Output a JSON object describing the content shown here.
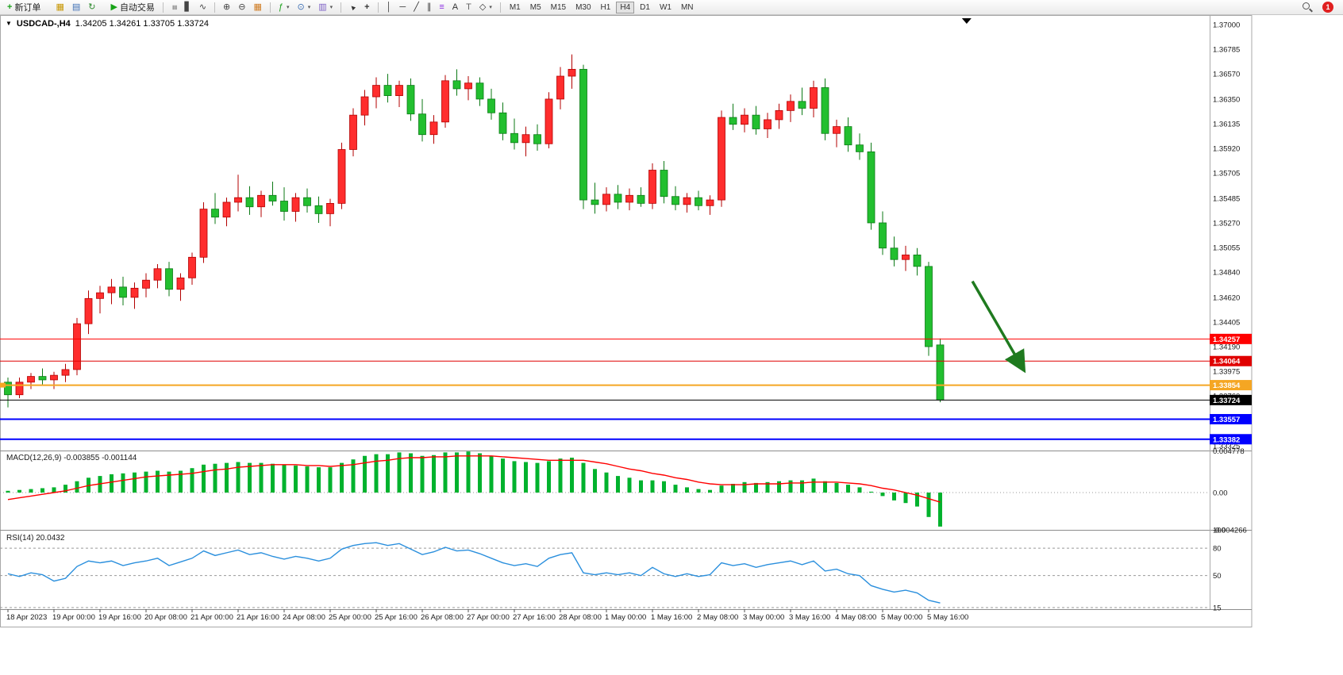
{
  "toolbar": {
    "notification_count": "1",
    "timeframe_active": "H4",
    "caret_glyph": "▾",
    "items": [
      {
        "kind": "button",
        "name": "new-order-button",
        "icon": "new-order-icon",
        "glyph": "+",
        "color": "#18a018",
        "label": "新订单"
      },
      {
        "kind": "gap"
      },
      {
        "kind": "icon",
        "name": "new-chart-button",
        "icon": "new-chart-icon",
        "glyph": "▦",
        "color": "#c79600"
      },
      {
        "kind": "icon",
        "name": "profiles-button",
        "icon": "profiles-icon",
        "glyph": "▤",
        "color": "#3c6eb4"
      },
      {
        "kind": "icon",
        "name": "refresh-button",
        "icon": "refresh-icon",
        "glyph": "↻",
        "color": "#2e8b2e"
      },
      {
        "kind": "gap"
      },
      {
        "kind": "button",
        "name": "autotrading-button",
        "icon": "autotrading-icon",
        "glyph": "▶",
        "color": "#17a317",
        "label": "自动交易"
      },
      {
        "kind": "sep"
      },
      {
        "kind": "icon",
        "name": "bar-chart-button",
        "icon": "bar-chart-icon",
        "glyph": "≡",
        "color": "#444",
        "rot": 90
      },
      {
        "kind": "icon",
        "name": "candlestick-chart-button",
        "icon": "candlestick-chart-icon",
        "glyph": "▋",
        "color": "#444"
      },
      {
        "kind": "icon",
        "name": "line-chart-button",
        "icon": "line-chart-icon",
        "glyph": "∿",
        "color": "#444"
      },
      {
        "kind": "sep"
      },
      {
        "kind": "icon",
        "name": "zoom-in-button",
        "icon": "zoom-in-icon",
        "glyph": "⊕",
        "color": "#444"
      },
      {
        "kind": "icon",
        "name": "zoom-out-button",
        "icon": "zoom-out-icon",
        "glyph": "⊖",
        "color": "#444"
      },
      {
        "kind": "icon",
        "name": "tile-windows-button",
        "icon": "tile-windows-icon",
        "glyph": "▦",
        "color": "#cf7a1f"
      },
      {
        "kind": "sep"
      },
      {
        "kind": "icon",
        "name": "indicators-button",
        "icon": "indicators-icon",
        "glyph": "ƒ",
        "color": "#18a018",
        "dropdown": true
      },
      {
        "kind": "icon",
        "name": "periods-button",
        "icon": "clock-icon",
        "glyph": "⊙",
        "color": "#3c6eb4",
        "dropdown": true
      },
      {
        "kind": "icon",
        "name": "templates-button",
        "icon": "template-icon",
        "glyph": "▥",
        "color": "#7a5cc4",
        "dropdown": true
      },
      {
        "kind": "sep"
      },
      {
        "kind": "icon",
        "name": "cursor-button",
        "icon": "cursor-icon",
        "glyph": "▲",
        "color": "#333",
        "rot": -45
      },
      {
        "kind": "icon",
        "name": "crosshair-button",
        "icon": "crosshair-icon",
        "glyph": "+",
        "color": "#333"
      },
      {
        "kind": "sep"
      },
      {
        "kind": "icon",
        "name": "vertical-line-button",
        "icon": "vertical-line-icon",
        "glyph": "│",
        "color": "#333"
      },
      {
        "kind": "icon",
        "name": "horizontal-line-button",
        "icon": "horizontal-line-icon",
        "glyph": "─",
        "color": "#333"
      },
      {
        "kind": "icon",
        "name": "trendline-button",
        "icon": "trendline-icon",
        "glyph": "╱",
        "color": "#333"
      },
      {
        "kind": "icon",
        "name": "channel-button",
        "icon": "channel-icon",
        "glyph": "∥",
        "color": "#333"
      },
      {
        "kind": "icon",
        "name": "fibonacci-button",
        "icon": "fibonacci-icon",
        "glyph": "≡",
        "color": "#8a2be2"
      },
      {
        "kind": "icon",
        "name": "text-button",
        "icon": "text-icon",
        "glyph": "A",
        "color": "#333"
      },
      {
        "kind": "icon",
        "name": "text-label-button",
        "icon": "text-label-icon",
        "glyph": "T",
        "color": "#666"
      },
      {
        "kind": "icon",
        "name": "shapes-button",
        "icon": "shapes-icon",
        "glyph": "◇",
        "color": "#333",
        "dropdown": true
      },
      {
        "kind": "sep"
      },
      {
        "kind": "tf",
        "label": "M1"
      },
      {
        "kind": "tf",
        "label": "M5"
      },
      {
        "kind": "tf",
        "label": "M15"
      },
      {
        "kind": "tf",
        "label": "M30"
      },
      {
        "kind": "tf",
        "label": "H1"
      },
      {
        "kind": "tf",
        "label": "H4"
      },
      {
        "kind": "tf",
        "label": "D1"
      },
      {
        "kind": "tf",
        "label": "W1"
      },
      {
        "kind": "tf",
        "label": "MN"
      }
    ]
  },
  "chart": {
    "collapse_icon": "▼",
    "title": "USDCAD-,H4",
    "ohlc": "1.34205 1.34261 1.33705 1.33724"
  },
  "chart_data": {
    "type": "candlestick",
    "symbol": "USDCAD-",
    "timeframe": "H4",
    "current_bar": {
      "open": 1.34205,
      "high": 1.34261,
      "low": 1.33705,
      "close": 1.33724
    },
    "colors": {
      "up": "#ff2d2d",
      "up_dark": "#b30000",
      "down": "#22bf2f",
      "down_dark": "#0c7a16",
      "macd_hist": "#00b22d",
      "macd_signal": "#ff0000",
      "rsi_line": "#2a8fdd"
    },
    "y_axis": {
      "max": 1.37,
      "min": 1.33325,
      "labels": [
        "1.37000",
        "1.36785",
        "1.36570",
        "1.36350",
        "1.36135",
        "1.35920",
        "1.35705",
        "1.35485",
        "1.35270",
        "1.35055",
        "1.34840",
        "1.34620",
        "1.34405",
        "1.34190",
        "1.33975",
        "1.33760",
        "1.33545",
        "1.33325"
      ]
    },
    "x_labels": [
      "18 Apr 2023",
      "19 Apr 00:00",
      "19 Apr 16:00",
      "20 Apr 08:00",
      "21 Apr 00:00",
      "21 Apr 16:00",
      "24 Apr 08:00",
      "25 Apr 00:00",
      "25 Apr 16:00",
      "26 Apr 08:00",
      "27 Apr 00:00",
      "27 Apr 16:00",
      "28 Apr 08:00",
      "1 May 00:00",
      "1 May 16:00",
      "2 May 08:00",
      "3 May 00:00",
      "3 May 16:00",
      "4 May 08:00",
      "5 May 00:00",
      "5 May 16:00"
    ],
    "bars_per_x_label": 4,
    "shift_marker_bar": 83.3,
    "candles": [
      [
        1.3388,
        1.3392,
        1.3366,
        1.3377
      ],
      [
        1.3377,
        1.3392,
        1.3374,
        1.3388
      ],
      [
        1.3388,
        1.3396,
        1.3382,
        1.3393
      ],
      [
        1.3393,
        1.34,
        1.3386,
        1.339
      ],
      [
        1.339,
        1.3397,
        1.3382,
        1.3394
      ],
      [
        1.3394,
        1.3404,
        1.3388,
        1.3399
      ],
      [
        1.3399,
        1.3444,
        1.3394,
        1.3439
      ],
      [
        1.3439,
        1.3468,
        1.343,
        1.3461
      ],
      [
        1.3461,
        1.3472,
        1.3448,
        1.3466
      ],
      [
        1.3466,
        1.3478,
        1.3456,
        1.3471
      ],
      [
        1.3471,
        1.348,
        1.3455,
        1.3462
      ],
      [
        1.3462,
        1.3475,
        1.3452,
        1.347
      ],
      [
        1.347,
        1.3483,
        1.3462,
        1.3477
      ],
      [
        1.3477,
        1.3491,
        1.347,
        1.3487
      ],
      [
        1.3487,
        1.3493,
        1.3463,
        1.3469
      ],
      [
        1.3469,
        1.3483,
        1.3459,
        1.3479
      ],
      [
        1.3479,
        1.3501,
        1.3473,
        1.3497
      ],
      [
        1.3497,
        1.3545,
        1.3492,
        1.3539
      ],
      [
        1.3539,
        1.3553,
        1.3526,
        1.3532
      ],
      [
        1.3532,
        1.3549,
        1.3524,
        1.3545
      ],
      [
        1.3545,
        1.3569,
        1.3537,
        1.3549
      ],
      [
        1.3549,
        1.3559,
        1.3534,
        1.3541
      ],
      [
        1.3541,
        1.3555,
        1.3532,
        1.3551
      ],
      [
        1.3551,
        1.3563,
        1.3542,
        1.3546
      ],
      [
        1.3546,
        1.3558,
        1.3529,
        1.3537
      ],
      [
        1.3537,
        1.3553,
        1.3528,
        1.3549
      ],
      [
        1.3549,
        1.3557,
        1.3536,
        1.3542
      ],
      [
        1.3542,
        1.355,
        1.3527,
        1.3535
      ],
      [
        1.3535,
        1.3548,
        1.3524,
        1.3544
      ],
      [
        1.3544,
        1.3597,
        1.3539,
        1.3591
      ],
      [
        1.3591,
        1.3627,
        1.3585,
        1.3621
      ],
      [
        1.3621,
        1.3643,
        1.3612,
        1.3637
      ],
      [
        1.3637,
        1.3654,
        1.3627,
        1.3647
      ],
      [
        1.3647,
        1.3657,
        1.3632,
        1.3638
      ],
      [
        1.3638,
        1.3651,
        1.3628,
        1.3647
      ],
      [
        1.3647,
        1.3653,
        1.3616,
        1.3622
      ],
      [
        1.3622,
        1.3635,
        1.3598,
        1.3604
      ],
      [
        1.3604,
        1.3621,
        1.3596,
        1.3615
      ],
      [
        1.3615,
        1.3656,
        1.361,
        1.3651
      ],
      [
        1.3651,
        1.3661,
        1.3638,
        1.3644
      ],
      [
        1.3644,
        1.3655,
        1.3634,
        1.3649
      ],
      [
        1.3649,
        1.3654,
        1.3629,
        1.3635
      ],
      [
        1.3635,
        1.3644,
        1.3617,
        1.3623
      ],
      [
        1.3623,
        1.3632,
        1.3599,
        1.3605
      ],
      [
        1.3605,
        1.3618,
        1.3591,
        1.3597
      ],
      [
        1.3597,
        1.3611,
        1.3585,
        1.3604
      ],
      [
        1.3604,
        1.3613,
        1.359,
        1.3596
      ],
      [
        1.3596,
        1.3641,
        1.3592,
        1.3635
      ],
      [
        1.3635,
        1.3663,
        1.3626,
        1.3655
      ],
      [
        1.3655,
        1.3674,
        1.3644,
        1.3661
      ],
      [
        1.3661,
        1.3665,
        1.3539,
        1.3547
      ],
      [
        1.3547,
        1.3562,
        1.3535,
        1.3543
      ],
      [
        1.3543,
        1.3558,
        1.3537,
        1.3552
      ],
      [
        1.3552,
        1.356,
        1.3539,
        1.3545
      ],
      [
        1.3545,
        1.3557,
        1.3538,
        1.3551
      ],
      [
        1.3551,
        1.3558,
        1.3541,
        1.3544
      ],
      [
        1.3544,
        1.3579,
        1.3539,
        1.3573
      ],
      [
        1.3573,
        1.3581,
        1.3544,
        1.355
      ],
      [
        1.355,
        1.3559,
        1.3538,
        1.3543
      ],
      [
        1.3543,
        1.3553,
        1.3536,
        1.3549
      ],
      [
        1.3549,
        1.3555,
        1.3538,
        1.3542
      ],
      [
        1.3542,
        1.3551,
        1.3534,
        1.3547
      ],
      [
        1.3547,
        1.3625,
        1.3541,
        1.3619
      ],
      [
        1.3619,
        1.3631,
        1.3608,
        1.3613
      ],
      [
        1.3613,
        1.3627,
        1.3606,
        1.3621
      ],
      [
        1.3621,
        1.3629,
        1.3604,
        1.3609
      ],
      [
        1.3609,
        1.3623,
        1.3601,
        1.3617
      ],
      [
        1.3617,
        1.3631,
        1.3609,
        1.3625
      ],
      [
        1.3625,
        1.3639,
        1.3615,
        1.3633
      ],
      [
        1.3633,
        1.3645,
        1.3621,
        1.3627
      ],
      [
        1.3627,
        1.3651,
        1.3619,
        1.3645
      ],
      [
        1.3645,
        1.3653,
        1.3599,
        1.3605
      ],
      [
        1.3605,
        1.3617,
        1.3593,
        1.3611
      ],
      [
        1.3611,
        1.3619,
        1.3589,
        1.3595
      ],
      [
        1.3595,
        1.3605,
        1.3582,
        1.3589
      ],
      [
        1.3589,
        1.3597,
        1.3521,
        1.3527
      ],
      [
        1.3527,
        1.3537,
        1.3499,
        1.3505
      ],
      [
        1.3505,
        1.3515,
        1.3489,
        1.3495
      ],
      [
        1.3495,
        1.3507,
        1.3485,
        1.3499
      ],
      [
        1.3499,
        1.3505,
        1.3481,
        1.3489
      ],
      [
        1.3489,
        1.3493,
        1.3411,
        1.3419
      ],
      [
        1.34205,
        1.34261,
        1.33705,
        1.33724
      ]
    ],
    "hlines": [
      {
        "name": "resistance-line-upper",
        "price": 1.34257,
        "label": "1.34257",
        "color": "#ff0000",
        "width": 1
      },
      {
        "name": "resistance-line-lower",
        "price": 1.34064,
        "label": "1.34064",
        "color": "#e00000",
        "width": 1
      },
      {
        "name": "support-line-orange",
        "price": 1.33854,
        "label": "1.33854",
        "color": "#f5a623",
        "width": 2,
        "left_marker": true
      },
      {
        "name": "current-price-line",
        "price": 1.33724,
        "label": "1.33724",
        "color": "#000000",
        "width": 1
      },
      {
        "name": "support-line-blue-1",
        "price": 1.33557,
        "label": "1.33557",
        "color": "#0000ff",
        "width": 2
      },
      {
        "name": "support-line-blue-2",
        "price": 1.33382,
        "label": "1.33382",
        "color": "#0000ff",
        "width": 2
      }
    ],
    "arrow": {
      "from_bar": 83.8,
      "from_price": 1.3476,
      "to_bar": 88.3,
      "to_price": 1.3398,
      "color": "#1f7a1f"
    },
    "macd": {
      "label": "MACD(12,26,9)",
      "value_main": "-0.003855",
      "value_signal": "-0.001144",
      "axis_labels": [
        "0.004778",
        "0.00",
        "-0.004266"
      ],
      "histogram": [
        0.0002,
        0.0003,
        0.0004,
        0.0005,
        0.0006,
        0.0009,
        0.0013,
        0.0017,
        0.0019,
        0.0021,
        0.0022,
        0.0023,
        0.0024,
        0.0025,
        0.0024,
        0.0025,
        0.0028,
        0.0032,
        0.0033,
        0.0034,
        0.0035,
        0.0034,
        0.0034,
        0.0033,
        0.0032,
        0.0031,
        0.003,
        0.0029,
        0.0029,
        0.0034,
        0.0038,
        0.0042,
        0.0044,
        0.0044,
        0.0046,
        0.0045,
        0.0042,
        0.0043,
        0.0046,
        0.0046,
        0.0047,
        0.0045,
        0.0042,
        0.0039,
        0.0036,
        0.0035,
        0.0034,
        0.0036,
        0.0039,
        0.004,
        0.0034,
        0.0027,
        0.0023,
        0.0019,
        0.0017,
        0.0014,
        0.0014,
        0.0013,
        0.0009,
        0.0006,
        0.0004,
        0.0003,
        0.0008,
        0.001,
        0.0012,
        0.0011,
        0.0012,
        0.0013,
        0.0014,
        0.0014,
        0.0016,
        0.0013,
        0.0011,
        0.0009,
        0.0006,
        0.0001,
        -0.0004,
        -0.0009,
        -0.0012,
        -0.0016,
        -0.0028,
        -0.0039
      ],
      "signal": [
        -0.0008,
        -0.0006,
        -0.0004,
        -0.0002,
        0.0,
        0.0002,
        0.0005,
        0.0008,
        0.001,
        0.0012,
        0.0014,
        0.0016,
        0.0018,
        0.0019,
        0.002,
        0.0021,
        0.0022,
        0.0024,
        0.0026,
        0.0027,
        0.0029,
        0.003,
        0.0031,
        0.0032,
        0.0032,
        0.0032,
        0.0031,
        0.0031,
        0.003,
        0.0031,
        0.0032,
        0.0034,
        0.0036,
        0.0037,
        0.0039,
        0.004,
        0.004,
        0.0041,
        0.0041,
        0.0042,
        0.0042,
        0.0042,
        0.0042,
        0.0041,
        0.004,
        0.0039,
        0.0038,
        0.0037,
        0.0037,
        0.0037,
        0.0037,
        0.0035,
        0.0033,
        0.003,
        0.0027,
        0.0025,
        0.0022,
        0.002,
        0.0017,
        0.0015,
        0.0012,
        0.001,
        0.0009,
        0.0009,
        0.0009,
        0.001,
        0.001,
        0.001,
        0.0011,
        0.0011,
        0.0012,
        0.0012,
        0.0012,
        0.0011,
        0.001,
        0.0008,
        0.0005,
        0.0003,
        0.0,
        -0.0003,
        -0.0007,
        -0.0011
      ]
    },
    "rsi": {
      "label": "RSI(14)",
      "value": "20.0432",
      "axis_labels": [
        "100",
        "80",
        "50",
        "15"
      ],
      "levels": [
        80,
        50,
        15
      ],
      "series": [
        52,
        49,
        53,
        51,
        44,
        47,
        60,
        66,
        64,
        66,
        61,
        64,
        66,
        69,
        61,
        65,
        69,
        77,
        72,
        75,
        78,
        73,
        75,
        71,
        68,
        71,
        69,
        66,
        69,
        79,
        83,
        85,
        86,
        83,
        85,
        79,
        73,
        76,
        81,
        77,
        78,
        74,
        69,
        64,
        61,
        63,
        60,
        69,
        73,
        75,
        53,
        51,
        53,
        51,
        53,
        50,
        59,
        52,
        49,
        52,
        49,
        51,
        64,
        61,
        63,
        59,
        62,
        64,
        66,
        62,
        66,
        55,
        57,
        52,
        50,
        39,
        35,
        32,
        34,
        31,
        23,
        20.04
      ]
    }
  }
}
